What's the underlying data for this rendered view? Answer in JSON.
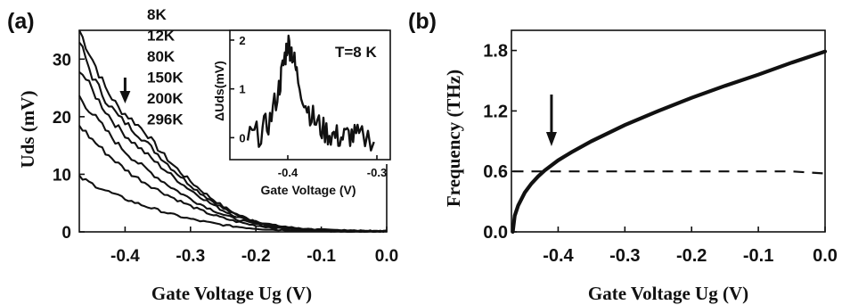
{
  "figure": {
    "panel_a_label": "(a)",
    "panel_b_label": "(b)"
  },
  "chart_data": [
    {
      "id": "a",
      "type": "line",
      "xlabel": "Gate Voltage Ug (V)",
      "ylabel": "Uds (mV)",
      "xlim": [
        -0.47,
        0.0
      ],
      "ylim": [
        0,
        35
      ],
      "xticks": [
        -0.4,
        -0.3,
        -0.2,
        -0.1,
        0.0
      ],
      "xtick_labels": [
        "-0.4",
        "-0.3",
        "-0.2",
        "-0.1",
        "0.0"
      ],
      "yticks": [
        0,
        10,
        20,
        30
      ],
      "ytick_labels": [
        "0",
        "10",
        "20",
        "30"
      ],
      "legend": [
        "8K",
        "12K",
        "80K",
        "150K",
        "200K",
        "296K"
      ],
      "arrow_x": -0.4,
      "x": [
        -0.47,
        -0.45,
        -0.43,
        -0.41,
        -0.39,
        -0.37,
        -0.35,
        -0.33,
        -0.31,
        -0.29,
        -0.27,
        -0.25,
        -0.23,
        -0.21,
        -0.19,
        -0.17,
        -0.15,
        -0.13,
        -0.11,
        -0.09,
        -0.07,
        -0.05,
        -0.03,
        -0.01,
        0.0
      ],
      "series": [
        {
          "name": "8K",
          "values": [
            35.0,
            30.0,
            25.0,
            21.5,
            19.5,
            17.5,
            14.5,
            12.0,
            9.8,
            7.8,
            6.0,
            4.4,
            3.1,
            2.2,
            1.6,
            1.1,
            0.8,
            0.55,
            0.4,
            0.3,
            0.25,
            0.2,
            0.15,
            0.12,
            0.1
          ]
        },
        {
          "name": "12K",
          "values": [
            33.0,
            27.0,
            23.0,
            20.0,
            18.0,
            15.8,
            13.5,
            11.2,
            9.1,
            7.2,
            5.6,
            4.1,
            2.9,
            2.1,
            1.5,
            1.05,
            0.75,
            0.5,
            0.38,
            0.28,
            0.22,
            0.18,
            0.14,
            0.11,
            0.1
          ]
        },
        {
          "name": "80K",
          "values": [
            28.5,
            24.5,
            21.0,
            18.0,
            15.8,
            13.8,
            11.8,
            9.9,
            8.1,
            6.5,
            5.0,
            3.7,
            2.7,
            1.9,
            1.35,
            0.95,
            0.68,
            0.48,
            0.35,
            0.26,
            0.2,
            0.16,
            0.13,
            0.1,
            0.1
          ]
        },
        {
          "name": "150K",
          "values": [
            23.5,
            20.5,
            17.7,
            15.1,
            12.9,
            11.1,
            9.4,
            7.8,
            6.4,
            5.1,
            4.0,
            3.0,
            2.2,
            1.6,
            1.15,
            0.82,
            0.58,
            0.42,
            0.3,
            0.22,
            0.17,
            0.14,
            0.11,
            0.09,
            0.08
          ]
        },
        {
          "name": "200K",
          "values": [
            18.5,
            16.0,
            13.8,
            11.8,
            10.0,
            8.6,
            7.3,
            6.1,
            5.0,
            4.0,
            3.1,
            2.4,
            1.8,
            1.3,
            0.95,
            0.7,
            0.5,
            0.36,
            0.26,
            0.2,
            0.15,
            0.12,
            0.1,
            0.08,
            0.07
          ]
        },
        {
          "name": "296K",
          "values": [
            9.5,
            8.3,
            7.2,
            6.2,
            5.3,
            4.5,
            3.8,
            3.1,
            2.5,
            2.0,
            1.6,
            1.2,
            0.9,
            0.68,
            0.5,
            0.37,
            0.28,
            0.21,
            0.16,
            0.12,
            0.1,
            0.08,
            0.07,
            0.06,
            0.05
          ]
        }
      ]
    },
    {
      "id": "a-inset",
      "type": "line",
      "xlabel": "Gate Voltage (V)",
      "ylabel": "ΔUds(mV)",
      "annotation": "T=8 K",
      "xlim": [
        -0.465,
        -0.285
      ],
      "ylim": [
        -0.45,
        2.2
      ],
      "xticks": [
        -0.4,
        -0.3
      ],
      "xtick_labels": [
        "-0.4",
        "-0.3"
      ],
      "yticks": [
        0,
        1,
        2
      ],
      "ytick_labels": [
        "0",
        "1",
        "2"
      ],
      "x": [
        -0.445,
        -0.43,
        -0.42,
        -0.41,
        -0.405,
        -0.4,
        -0.395,
        -0.39,
        -0.38,
        -0.37,
        -0.36,
        -0.35,
        -0.34,
        -0.33,
        -0.32,
        -0.3
      ],
      "values": [
        0.0,
        0.1,
        0.35,
        1.0,
        1.5,
        1.95,
        1.75,
        1.3,
        0.7,
        0.35,
        0.15,
        0.05,
        0.0,
        0.05,
        0.0,
        0.0
      ]
    },
    {
      "id": "b",
      "type": "line",
      "xlabel": "Gate Voltage Ug (V)",
      "ylabel": "Frequency (THz)",
      "xlim": [
        -0.47,
        0.0
      ],
      "ylim": [
        0,
        2.0
      ],
      "xticks": [
        -0.4,
        -0.3,
        -0.2,
        -0.1,
        0.0
      ],
      "xtick_labels": [
        "-0.4",
        "-0.3",
        "-0.2",
        "-0.1",
        "0.0"
      ],
      "yticks": [
        0.0,
        0.6,
        1.2,
        1.8
      ],
      "ytick_labels": [
        "0.0",
        "0.6",
        "1.2",
        "1.8"
      ],
      "arrow_x": -0.41,
      "x": [
        -0.468,
        -0.465,
        -0.46,
        -0.45,
        -0.44,
        -0.43,
        -0.42,
        -0.41,
        -0.4,
        -0.38,
        -0.35,
        -0.3,
        -0.25,
        -0.2,
        -0.15,
        -0.1,
        -0.05,
        0.0
      ],
      "series": [
        {
          "name": "",
          "style": "solid",
          "values": [
            0.0,
            0.16,
            0.26,
            0.39,
            0.48,
            0.55,
            0.61,
            0.66,
            0.71,
            0.79,
            0.9,
            1.06,
            1.2,
            1.33,
            1.45,
            1.56,
            1.68,
            1.79
          ]
        },
        {
          "name": "",
          "style": "dashed",
          "values": [
            0.6,
            0.6,
            0.6,
            0.6,
            0.6,
            0.6,
            0.6,
            0.6,
            0.6,
            0.6,
            0.6,
            0.6,
            0.6,
            0.6,
            0.6,
            0.6,
            0.6,
            0.58
          ]
        }
      ]
    }
  ]
}
